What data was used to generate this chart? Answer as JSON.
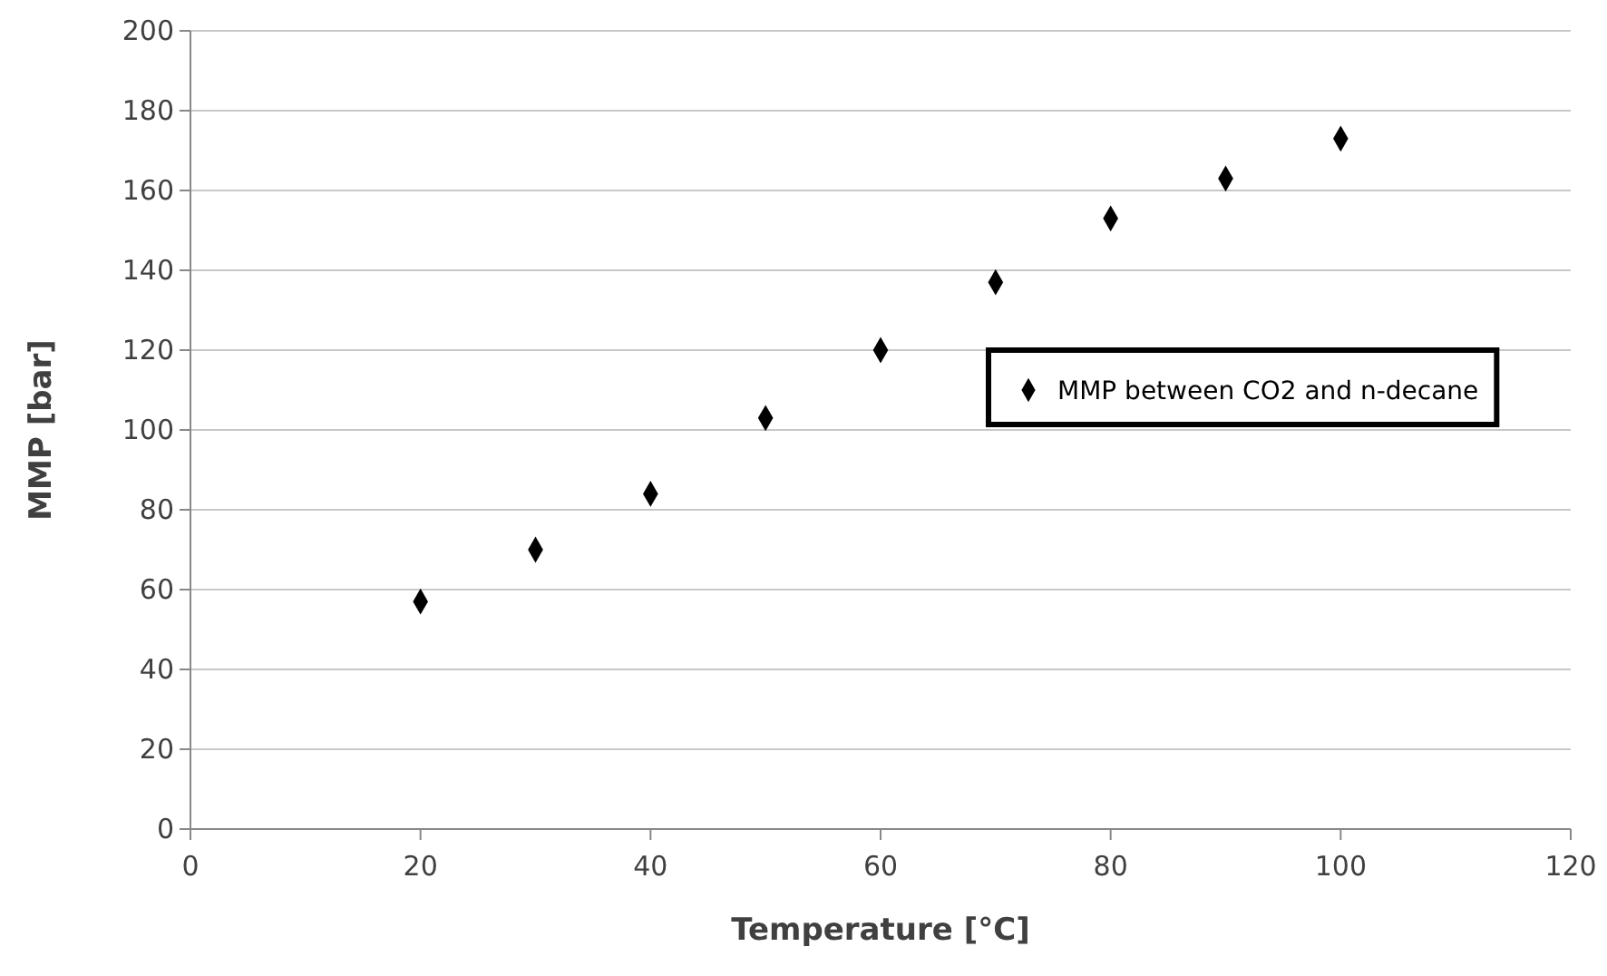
{
  "chart_data": {
    "type": "scatter",
    "xlabel": "Temperature [°C]",
    "ylabel": "MMP [bar]",
    "x": [
      20,
      30,
      40,
      50,
      60,
      70,
      80,
      90,
      100
    ],
    "series": [
      {
        "name": "MMP between CO2 and n-decane",
        "color": "#000000",
        "values": [
          57,
          70,
          84,
          103,
          120,
          137,
          153,
          163,
          173
        ]
      }
    ],
    "xlim": [
      0,
      120
    ],
    "xticks": [
      0,
      20,
      40,
      60,
      80,
      100,
      120
    ],
    "ylim": [
      0,
      200
    ],
    "yticks": [
      0,
      20,
      40,
      60,
      80,
      100,
      120,
      140,
      160,
      180,
      200
    ],
    "grid": "y",
    "legend": "right",
    "marker": "diamond"
  }
}
